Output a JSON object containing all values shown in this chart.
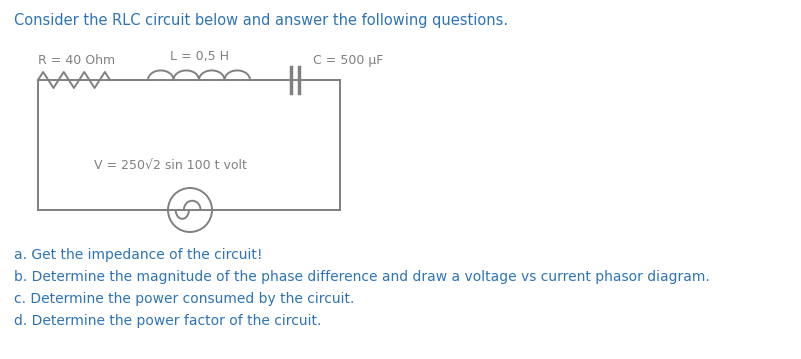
{
  "title": "Consider the RLC circuit below and answer the following questions.",
  "title_color": "#2E74B5",
  "title_fontsize": 10.5,
  "questions": [
    "a. Get the impedance of the circuit!",
    "b. Determine the magnitude of the phase difference and draw a voltage vs current phasor diagram.",
    "c. Determine the power consumed by the circuit.",
    "d. Determine the power factor of the circuit."
  ],
  "question_color": "#2E74B5",
  "question_fontsize": 10.0,
  "R_label": "R = 40 Ohm",
  "L_label": "L = 0,5 H",
  "C_label": "C = 500 μF",
  "V_label": "V = 250√2 sin 100 t volt",
  "circuit_color": "#808080",
  "bg_color": "#ffffff",
  "label_color": "#808080",
  "label_fontsize": 9.0
}
